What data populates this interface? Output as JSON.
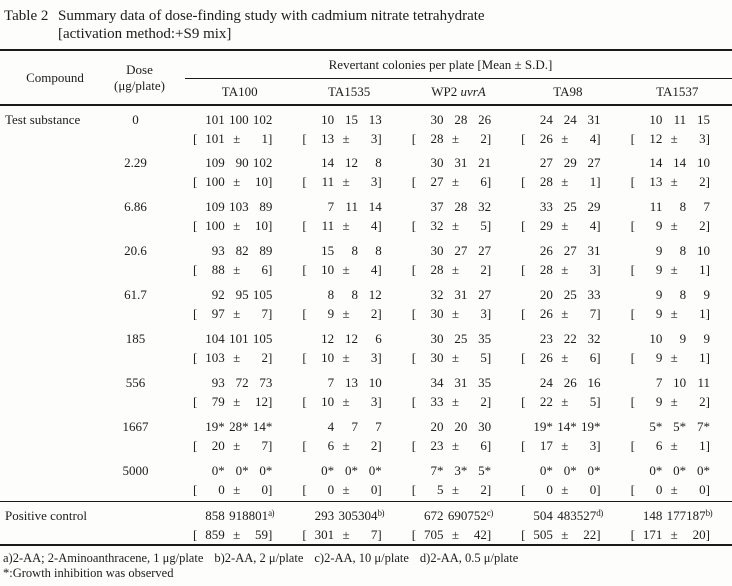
{
  "title": {
    "tag": "Table 2",
    "text": "Summary data of dose-finding study with cadmium nitrate tetrahydrate",
    "subtitle": "[activation method:+S9 mix]"
  },
  "header": {
    "compound": "Compound",
    "dose_line1": "Dose",
    "dose_line2": "(μg/plate)",
    "span_label": "Revertant colonies per plate [Mean ± S.D.]",
    "strains": [
      {
        "label": "TA100",
        "italic": ""
      },
      {
        "label": "TA1535",
        "italic": ""
      },
      {
        "label": "WP2 ",
        "italic": "uvrA"
      },
      {
        "label": "TA98",
        "italic": ""
      },
      {
        "label": "TA1537",
        "italic": ""
      }
    ]
  },
  "table": {
    "test_compound_label": "Test substance",
    "plus_minus": "±",
    "rows": [
      {
        "dose": "0",
        "cells": [
          {
            "v": [
              "101",
              "100",
              "102"
            ],
            "m": "101",
            "s": "1"
          },
          {
            "v": [
              "10",
              "15",
              "13"
            ],
            "m": "13",
            "s": "3"
          },
          {
            "v": [
              "30",
              "28",
              "26"
            ],
            "m": "28",
            "s": "2"
          },
          {
            "v": [
              "24",
              "24",
              "31"
            ],
            "m": "26",
            "s": "4"
          },
          {
            "v": [
              "10",
              "11",
              "15"
            ],
            "m": "12",
            "s": "3"
          }
        ]
      },
      {
        "dose": "2.29",
        "cells": [
          {
            "v": [
              "109",
              "90",
              "102"
            ],
            "m": "100",
            "s": "10"
          },
          {
            "v": [
              "14",
              "12",
              "8"
            ],
            "m": "11",
            "s": "3"
          },
          {
            "v": [
              "30",
              "31",
              "21"
            ],
            "m": "27",
            "s": "6"
          },
          {
            "v": [
              "27",
              "29",
              "27"
            ],
            "m": "28",
            "s": "1"
          },
          {
            "v": [
              "14",
              "14",
              "10"
            ],
            "m": "13",
            "s": "2"
          }
        ]
      },
      {
        "dose": "6.86",
        "cells": [
          {
            "v": [
              "109",
              "103",
              "89"
            ],
            "m": "100",
            "s": "10"
          },
          {
            "v": [
              "7",
              "11",
              "14"
            ],
            "m": "11",
            "s": "4"
          },
          {
            "v": [
              "37",
              "28",
              "32"
            ],
            "m": "32",
            "s": "5"
          },
          {
            "v": [
              "33",
              "25",
              "29"
            ],
            "m": "29",
            "s": "4"
          },
          {
            "v": [
              "11",
              "8",
              "7"
            ],
            "m": "9",
            "s": "2"
          }
        ]
      },
      {
        "dose": "20.6",
        "cells": [
          {
            "v": [
              "93",
              "82",
              "89"
            ],
            "m": "88",
            "s": "6"
          },
          {
            "v": [
              "15",
              "8",
              "8"
            ],
            "m": "10",
            "s": "4"
          },
          {
            "v": [
              "30",
              "27",
              "27"
            ],
            "m": "28",
            "s": "2"
          },
          {
            "v": [
              "26",
              "27",
              "31"
            ],
            "m": "28",
            "s": "3"
          },
          {
            "v": [
              "9",
              "8",
              "10"
            ],
            "m": "9",
            "s": "1"
          }
        ]
      },
      {
        "dose": "61.7",
        "cells": [
          {
            "v": [
              "92",
              "95",
              "105"
            ],
            "m": "97",
            "s": "7"
          },
          {
            "v": [
              "8",
              "8",
              "12"
            ],
            "m": "9",
            "s": "2"
          },
          {
            "v": [
              "32",
              "31",
              "27"
            ],
            "m": "30",
            "s": "3"
          },
          {
            "v": [
              "20",
              "25",
              "33"
            ],
            "m": "26",
            "s": "7"
          },
          {
            "v": [
              "9",
              "8",
              "9"
            ],
            "m": "9",
            "s": "1"
          }
        ]
      },
      {
        "dose": "185",
        "cells": [
          {
            "v": [
              "104",
              "101",
              "105"
            ],
            "m": "103",
            "s": "2"
          },
          {
            "v": [
              "12",
              "12",
              "6"
            ],
            "m": "10",
            "s": "3"
          },
          {
            "v": [
              "30",
              "25",
              "35"
            ],
            "m": "30",
            "s": "5"
          },
          {
            "v": [
              "23",
              "22",
              "32"
            ],
            "m": "26",
            "s": "6"
          },
          {
            "v": [
              "10",
              "9",
              "9"
            ],
            "m": "9",
            "s": "1"
          }
        ]
      },
      {
        "dose": "556",
        "cells": [
          {
            "v": [
              "93",
              "72",
              "73"
            ],
            "m": "79",
            "s": "12"
          },
          {
            "v": [
              "7",
              "13",
              "10"
            ],
            "m": "10",
            "s": "3"
          },
          {
            "v": [
              "34",
              "31",
              "35"
            ],
            "m": "33",
            "s": "2"
          },
          {
            "v": [
              "24",
              "26",
              "16"
            ],
            "m": "22",
            "s": "5"
          },
          {
            "v": [
              "7",
              "10",
              "11"
            ],
            "m": "9",
            "s": "2"
          }
        ]
      },
      {
        "dose": "1667",
        "cells": [
          {
            "v": [
              "19*",
              "28*",
              "14*"
            ],
            "m": "20",
            "s": "7"
          },
          {
            "v": [
              "4",
              "7",
              "7"
            ],
            "m": "6",
            "s": "2"
          },
          {
            "v": [
              "20",
              "20",
              "30"
            ],
            "m": "23",
            "s": "6"
          },
          {
            "v": [
              "19*",
              "14*",
              "19*"
            ],
            "m": "17",
            "s": "3"
          },
          {
            "v": [
              "5*",
              "5*",
              "7*"
            ],
            "m": "6",
            "s": "1"
          }
        ]
      },
      {
        "dose": "5000",
        "cells": [
          {
            "v": [
              "0*",
              "0*",
              "0*"
            ],
            "m": "0",
            "s": "0"
          },
          {
            "v": [
              "0*",
              "0*",
              "0*"
            ],
            "m": "0",
            "s": "0"
          },
          {
            "v": [
              "7*",
              "3*",
              "5*"
            ],
            "m": "5",
            "s": "2"
          },
          {
            "v": [
              "0*",
              "0*",
              "0*"
            ],
            "m": "0",
            "s": "0"
          },
          {
            "v": [
              "0*",
              "0*",
              "0*"
            ],
            "m": "0",
            "s": "0"
          }
        ]
      }
    ],
    "positive_control": {
      "label": "Positive control",
      "cells": [
        {
          "v": [
            "858",
            "918",
            "801"
          ],
          "sups": [
            "",
            "",
            "a)"
          ],
          "m": "859",
          "s": "59"
        },
        {
          "v": [
            "293",
            "305",
            "304"
          ],
          "sups": [
            "",
            "",
            "b)"
          ],
          "m": "301",
          "s": "7"
        },
        {
          "v": [
            "672",
            "690",
            "752"
          ],
          "sups": [
            "",
            "",
            "c)"
          ],
          "m": "705",
          "s": "42"
        },
        {
          "v": [
            "504",
            "483",
            "527"
          ],
          "sups": [
            "",
            "",
            "d)"
          ],
          "m": "505",
          "s": "22"
        },
        {
          "v": [
            "148",
            "177",
            "187"
          ],
          "sups": [
            "",
            "",
            "b)"
          ],
          "m": "171",
          "s": "20"
        }
      ]
    }
  },
  "footnotes": {
    "line1_entries": [
      "a)2-AA; 2-Aminoanthracene, 1 μg/plate",
      "b)2-AA, 2 μ/plate",
      "c)2-AA, 10 μ/plate",
      "d)2-AA, 0.5 μ/plate"
    ],
    "line2": "*:Growth inhibition was observed"
  }
}
